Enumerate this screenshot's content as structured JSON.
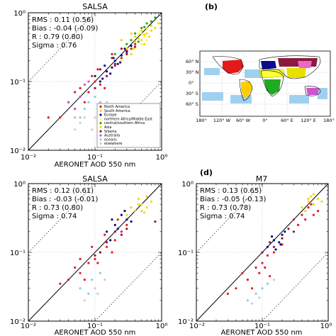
{
  "colors": {
    "north_america": "#e31a1c",
    "south_america": "#ffcc00",
    "europe": "#0a0a8c",
    "africa_middle_east": "#ffff33",
    "central_southern_africa": "#22aa22",
    "asia": "#e8e000",
    "siberia": "#8c1a3c",
    "australia": "#cc55cc",
    "oceans": "#88ccee",
    "elsewhere": "#cccccc"
  },
  "map": {
    "label": "(b)",
    "lat_labels": [
      "60° N",
      "30° N",
      "0°",
      "30° S",
      "60° S"
    ],
    "lon_labels": [
      "180°",
      "120° W",
      "60° W",
      "0°",
      "60° E",
      "120° E",
      "180°"
    ]
  },
  "chart_data": [
    {
      "type": "scatter",
      "panel_label": "",
      "title": "SALSA",
      "xlabel": "AERONET AOD 550 nm",
      "ylabel": "",
      "x_scale": "log",
      "y_scale": "log",
      "xlim": [
        0.01,
        1
      ],
      "ylim": [
        0.01,
        1
      ],
      "x_ticks": [
        "10⁻²",
        "10⁻¹",
        "10⁰"
      ],
      "y_ticks": [
        "10⁻²",
        "10⁻¹",
        "10⁰"
      ],
      "stats": [
        "RMS : 0.11 (0.56)",
        "Bias : -0.04 (-0.09)",
        "R : 0.79 (0.80)",
        "Sigma : 0.76"
      ],
      "legend_position": "lower-right",
      "legend": [
        {
          "label": "North America",
          "color": "#e31a1c"
        },
        {
          "label": "South America",
          "color": "#ffcc00"
        },
        {
          "label": "Europe",
          "color": "#0a0a8c"
        },
        {
          "label": "northern Africa/Middle East",
          "color": "#ffff33"
        },
        {
          "label": "central/southern Africa",
          "color": "#22aa22"
        },
        {
          "label": "Asia",
          "color": "#e8e000"
        },
        {
          "label": "Siberia",
          "color": "#8c1a3c"
        },
        {
          "label": "Australia",
          "color": "#cc55cc"
        },
        {
          "label": "oceans",
          "color": "#88ccee"
        },
        {
          "label": "elsewhere",
          "color": "#cccccc"
        }
      ],
      "series": [
        {
          "color": "#e31a1c",
          "points": [
            [
              0.03,
              0.03
            ],
            [
              0.05,
              0.04
            ],
            [
              0.08,
              0.07
            ],
            [
              0.1,
              0.1
            ],
            [
              0.12,
              0.09
            ],
            [
              0.15,
              0.12
            ],
            [
              0.2,
              0.17
            ],
            [
              0.25,
              0.22
            ],
            [
              0.3,
              0.28
            ],
            [
              0.06,
              0.08
            ],
            [
              0.04,
              0.05
            ],
            [
              0.07,
              0.05
            ],
            [
              0.18,
              0.25
            ],
            [
              0.35,
              0.3
            ],
            [
              0.09,
              0.12
            ],
            [
              0.02,
              0.03
            ],
            [
              0.11,
              0.15
            ],
            [
              0.14,
              0.08
            ],
            [
              0.4,
              0.35
            ],
            [
              0.05,
              0.07
            ]
          ]
        },
        {
          "color": "#0a0a8c",
          "points": [
            [
              0.12,
              0.1
            ],
            [
              0.15,
              0.14
            ],
            [
              0.18,
              0.16
            ],
            [
              0.2,
              0.2
            ],
            [
              0.22,
              0.18
            ],
            [
              0.25,
              0.24
            ],
            [
              0.3,
              0.27
            ],
            [
              0.1,
              0.12
            ],
            [
              0.14,
              0.17
            ],
            [
              0.17,
              0.13
            ],
            [
              0.28,
              0.3
            ],
            [
              0.35,
              0.33
            ],
            [
              0.13,
              0.11
            ],
            [
              0.19,
              0.22
            ],
            [
              0.24,
              0.19
            ]
          ]
        },
        {
          "color": "#ffcc00",
          "points": [
            [
              0.3,
              0.35
            ],
            [
              0.4,
              0.45
            ],
            [
              0.5,
              0.55
            ],
            [
              0.6,
              0.6
            ],
            [
              0.45,
              0.38
            ],
            [
              0.35,
              0.5
            ],
            [
              0.55,
              0.48
            ],
            [
              0.7,
              0.65
            ],
            [
              0.25,
              0.4
            ],
            [
              0.38,
              0.3
            ]
          ]
        },
        {
          "color": "#e8e000",
          "points": [
            [
              0.3,
              0.3
            ],
            [
              0.4,
              0.38
            ],
            [
              0.5,
              0.4
            ],
            [
              0.6,
              0.5
            ],
            [
              0.7,
              0.55
            ],
            [
              0.8,
              0.6
            ],
            [
              0.45,
              0.42
            ],
            [
              0.55,
              0.35
            ],
            [
              0.65,
              0.45
            ],
            [
              0.35,
              0.25
            ],
            [
              0.9,
              0.7
            ],
            [
              0.5,
              0.5
            ]
          ]
        },
        {
          "color": "#ffff33",
          "points": [
            [
              0.3,
              0.25
            ],
            [
              0.4,
              0.3
            ],
            [
              0.5,
              0.35
            ],
            [
              0.6,
              0.4
            ],
            [
              0.35,
              0.4
            ],
            [
              0.45,
              0.5
            ],
            [
              0.55,
              0.45
            ],
            [
              0.25,
              0.2
            ]
          ]
        },
        {
          "color": "#22aa22",
          "points": [
            [
              0.2,
              0.25
            ],
            [
              0.3,
              0.35
            ],
            [
              0.4,
              0.5
            ],
            [
              0.5,
              0.6
            ],
            [
              0.6,
              0.7
            ],
            [
              0.7,
              0.75
            ],
            [
              0.35,
              0.4
            ],
            [
              0.45,
              0.38
            ],
            [
              0.55,
              0.62
            ],
            [
              0.8,
              0.85
            ]
          ]
        },
        {
          "color": "#8c1a3c",
          "points": [
            [
              0.15,
              0.12
            ],
            [
              0.2,
              0.18
            ],
            [
              0.1,
              0.08
            ],
            [
              0.3,
              0.25
            ],
            [
              0.25,
              0.3
            ],
            [
              0.4,
              0.32
            ],
            [
              0.12,
              0.15
            ],
            [
              0.18,
              0.22
            ]
          ]
        },
        {
          "color": "#cc55cc",
          "points": [
            [
              0.04,
              0.05
            ],
            [
              0.06,
              0.06
            ],
            [
              0.08,
              0.1
            ],
            [
              0.05,
              0.04
            ],
            [
              0.07,
              0.09
            ]
          ]
        },
        {
          "color": "#88ccee",
          "points": [
            [
              0.05,
              0.03
            ],
            [
              0.07,
              0.04
            ],
            [
              0.1,
              0.06
            ],
            [
              0.12,
              0.05
            ],
            [
              0.08,
              0.05
            ],
            [
              0.06,
              0.03
            ]
          ]
        },
        {
          "color": "#cccccc",
          "points": [
            [
              0.05,
              0.02
            ],
            [
              0.07,
              0.03
            ],
            [
              0.1,
              0.03
            ],
            [
              0.13,
              0.04
            ],
            [
              0.09,
              0.02
            ],
            [
              0.15,
              0.05
            ],
            [
              0.06,
              0.025
            ]
          ]
        }
      ]
    },
    {
      "type": "scatter",
      "panel_label": "",
      "title": "SALSA",
      "xlabel": "AERONET AOD 550 nm",
      "ylabel": "",
      "x_scale": "log",
      "y_scale": "log",
      "xlim": [
        0.01,
        1
      ],
      "ylim": [
        0.01,
        1
      ],
      "x_ticks": [
        "10⁻²",
        "10⁻¹",
        "10⁰"
      ],
      "y_ticks": [
        "10⁻²",
        "10⁻¹",
        "10⁰"
      ],
      "stats": [
        "RMS : 0.12 (0.61)",
        "Bias : -0.03 (-0.01)",
        "R : 0.73 (0.80)",
        "Sigma : 0.74"
      ],
      "series": [
        {
          "color": "#e31a1c",
          "points": [
            [
              0.04,
              0.04
            ],
            [
              0.06,
              0.05
            ],
            [
              0.08,
              0.07
            ],
            [
              0.1,
              0.08
            ],
            [
              0.12,
              0.1
            ],
            [
              0.15,
              0.12
            ],
            [
              0.2,
              0.15
            ],
            [
              0.05,
              0.06
            ],
            [
              0.07,
              0.04
            ],
            [
              0.09,
              0.12
            ],
            [
              0.11,
              0.07
            ],
            [
              0.25,
              0.2
            ],
            [
              0.3,
              0.25
            ],
            [
              0.14,
              0.18
            ],
            [
              0.03,
              0.035
            ],
            [
              0.18,
              0.1
            ],
            [
              0.06,
              0.08
            ],
            [
              0.22,
              0.3
            ]
          ]
        },
        {
          "color": "#0a0a8c",
          "points": [
            [
              0.15,
              0.2
            ],
            [
              0.2,
              0.25
            ],
            [
              0.18,
              0.3
            ],
            [
              0.25,
              0.35
            ],
            [
              0.3,
              0.3
            ],
            [
              0.22,
              0.22
            ],
            [
              0.17,
              0.15
            ],
            [
              0.28,
              0.4
            ],
            [
              0.35,
              0.28
            ]
          ]
        },
        {
          "color": "#e8e000",
          "points": [
            [
              0.3,
              0.35
            ],
            [
              0.4,
              0.4
            ],
            [
              0.5,
              0.5
            ],
            [
              0.6,
              0.45
            ],
            [
              0.45,
              0.6
            ],
            [
              0.7,
              0.55
            ],
            [
              0.55,
              0.38
            ]
          ]
        },
        {
          "color": "#ffcc00",
          "points": [
            [
              0.35,
              0.45
            ],
            [
              0.45,
              0.5
            ],
            [
              0.6,
              0.65
            ],
            [
              0.5,
              0.4
            ]
          ]
        },
        {
          "color": "#8c1a3c",
          "points": [
            [
              0.1,
              0.09
            ],
            [
              0.15,
              0.14
            ],
            [
              0.2,
              0.2
            ],
            [
              0.12,
              0.1
            ],
            [
              0.25,
              0.18
            ],
            [
              0.3,
              0.22
            ],
            [
              0.8,
              0.28
            ]
          ]
        },
        {
          "color": "#88ccee",
          "points": [
            [
              0.06,
              0.03
            ],
            [
              0.09,
              0.04
            ],
            [
              0.12,
              0.05
            ],
            [
              0.08,
              0.025
            ]
          ]
        },
        {
          "color": "#cccccc",
          "points": [
            [
              0.07,
              0.02
            ],
            [
              0.1,
              0.03
            ],
            [
              0.14,
              0.04
            ],
            [
              0.11,
              0.025
            ]
          ]
        }
      ]
    },
    {
      "type": "scatter",
      "panel_label": "(d)",
      "title": "M7",
      "xlabel": "AERONET AOD 550 nm",
      "ylabel": "",
      "x_scale": "log",
      "y_scale": "log",
      "xlim": [
        0.01,
        1
      ],
      "ylim": [
        0.01,
        1
      ],
      "x_ticks": [
        "10⁻²",
        "10⁻¹",
        "10⁰"
      ],
      "y_ticks": [
        "10⁻²",
        "10⁻¹",
        "10⁰"
      ],
      "stats": [
        "RMS : 0.13 (0.65)",
        "Bias : -0.05 (-0.13)",
        "R : 0.73 (0.78)",
        "Sigma : 0.74"
      ],
      "series": [
        {
          "color": "#e31a1c",
          "points": [
            [
              0.04,
              0.03
            ],
            [
              0.06,
              0.04
            ],
            [
              0.08,
              0.06
            ],
            [
              0.1,
              0.07
            ],
            [
              0.12,
              0.09
            ],
            [
              0.15,
              0.1
            ],
            [
              0.2,
              0.13
            ],
            [
              0.05,
              0.05
            ],
            [
              0.07,
              0.03
            ],
            [
              0.09,
              0.05
            ],
            [
              0.11,
              0.06
            ],
            [
              0.3,
              0.3
            ],
            [
              0.4,
              0.35
            ],
            [
              0.5,
              0.45
            ],
            [
              0.6,
              0.35
            ],
            [
              0.35,
              0.25
            ],
            [
              0.45,
              0.3
            ],
            [
              0.55,
              0.5
            ],
            [
              0.03,
              0.025
            ],
            [
              0.13,
              0.045
            ],
            [
              0.7,
              0.4
            ]
          ]
        },
        {
          "color": "#0a0a8c",
          "points": [
            [
              0.12,
              0.12
            ],
            [
              0.15,
              0.15
            ],
            [
              0.18,
              0.14
            ],
            [
              0.2,
              0.18
            ],
            [
              0.16,
              0.11
            ],
            [
              0.22,
              0.2
            ],
            [
              0.14,
              0.17
            ],
            [
              0.19,
              0.13
            ]
          ]
        },
        {
          "color": "#e8e000",
          "points": [
            [
              0.4,
              0.45
            ],
            [
              0.5,
              0.55
            ],
            [
              0.6,
              0.5
            ],
            [
              0.7,
              0.6
            ],
            [
              0.55,
              0.65
            ],
            [
              0.8,
              0.55
            ]
          ]
        },
        {
          "color": "#ffcc00",
          "points": [
            [
              0.45,
              0.4
            ],
            [
              0.6,
              0.7
            ],
            [
              0.5,
              0.6
            ]
          ]
        },
        {
          "color": "#8c1a3c",
          "points": [
            [
              0.1,
              0.1
            ],
            [
              0.15,
              0.12
            ],
            [
              0.2,
              0.16
            ],
            [
              0.25,
              0.22
            ],
            [
              0.3,
              0.2
            ],
            [
              0.13,
              0.14
            ]
          ]
        },
        {
          "color": "#88ccee",
          "points": [
            [
              0.06,
              0.02
            ],
            [
              0.08,
              0.025
            ],
            [
              0.1,
              0.03
            ],
            [
              0.12,
              0.035
            ]
          ]
        },
        {
          "color": "#cccccc",
          "points": [
            [
              0.07,
              0.018
            ],
            [
              0.09,
              0.022
            ],
            [
              0.15,
              0.04
            ]
          ]
        }
      ]
    }
  ]
}
